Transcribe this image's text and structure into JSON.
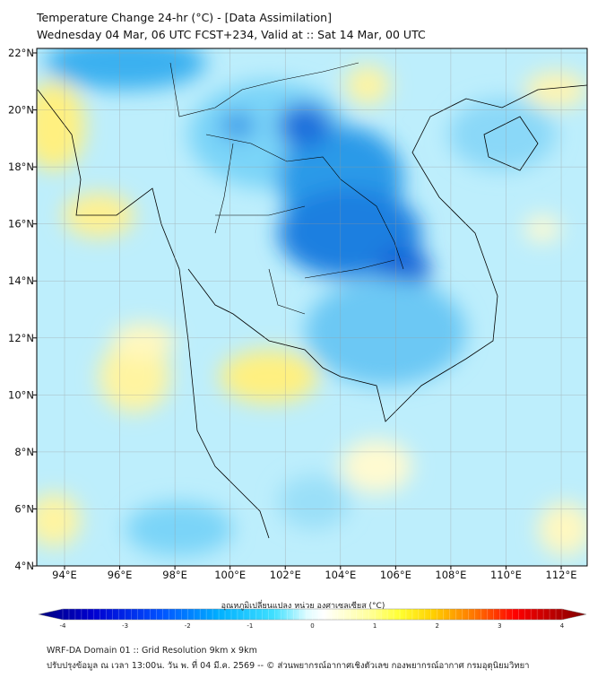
{
  "header": {
    "title": "Temperature Change 24-hr (°C) - [Data Assimilation]",
    "subtitle": "Wednesday 04 Mar, 06 UTC FCST+234, Valid at :: Sat 14 Mar, 00 UTC"
  },
  "map": {
    "lon_labels": [
      "94°E",
      "96°E",
      "98°E",
      "100°E",
      "102°E",
      "104°E",
      "106°E",
      "108°E",
      "110°E",
      "112°E"
    ],
    "lon_values": [
      94,
      96,
      98,
      100,
      102,
      104,
      106,
      108,
      110,
      112
    ],
    "lat_labels": [
      "22°N",
      "20°N",
      "18°N",
      "16°N",
      "14°N",
      "12°N",
      "10°N",
      "8°N",
      "6°N",
      "4°N"
    ],
    "lat_values": [
      22,
      20,
      18,
      16,
      14,
      12,
      10,
      8,
      6,
      4
    ],
    "extent": {
      "lon": [
        93,
        112.9
      ],
      "lat": [
        4,
        22.15
      ]
    }
  },
  "colorbar": {
    "label": "อุณหภูมิเปลี่ยนแปลง หน่วย องศาเซลเซียส (°C)",
    "ticks": [
      "-4",
      "-3",
      "-2",
      "-1",
      "0",
      "1",
      "2",
      "3",
      "4"
    ],
    "range": [
      -4,
      4
    ],
    "colors": [
      "#00007f",
      "#0000d0",
      "#0050ff",
      "#00b0ff",
      "#40e0ff",
      "#c0f8ff",
      "#ffffff",
      "#ffffa0",
      "#ffff30",
      "#ffd000",
      "#ff7000",
      "#ff0000",
      "#c00000",
      "#7f0000"
    ]
  },
  "footer": {
    "line1": "WRF-DA Domain 01 :: Grid Resolution 9km x 9km",
    "line2": "ปรับปรุงข้อมูล ณ เวลา 13:00น. วัน พ. ที่ 04 มี.ค. 2569 -- © ส่วนพยากรณ์อากาศเชิงตัวเลข กองพยากรณ์อากาศ กรมอุตุนิยมวิทยา"
  }
}
